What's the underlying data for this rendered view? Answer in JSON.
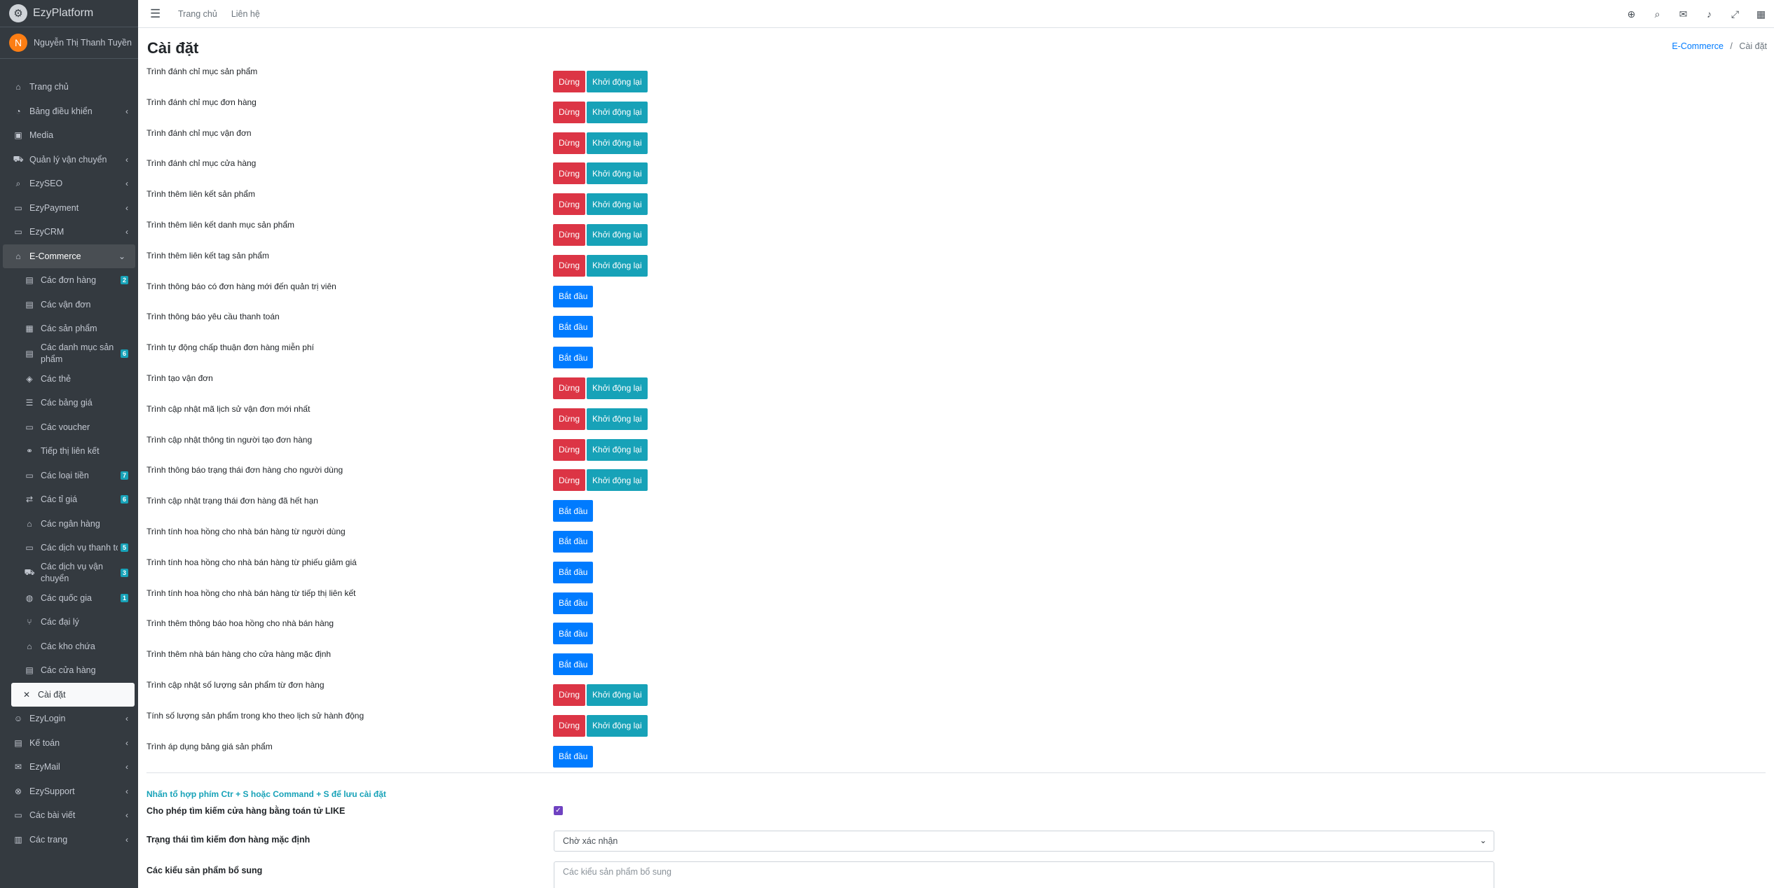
{
  "brand": {
    "name": "EzyPlatform",
    "logo_icon": "gear-icon"
  },
  "user": {
    "initial": "N",
    "name": "Nguyễn Thị Thanh Tuyền"
  },
  "sidebar": {
    "items": [
      {
        "label": "Trang chủ",
        "icon": "home-icon",
        "glyph": "⌂"
      },
      {
        "label": "Bảng điều khiển",
        "icon": "dashboard-icon",
        "glyph": "◔",
        "chevron": "‹"
      },
      {
        "label": "Media",
        "icon": "media-icon",
        "glyph": "▣"
      },
      {
        "label": "Quản lý vận chuyển",
        "icon": "truck-icon",
        "glyph": "⛟",
        "chevron": "‹"
      },
      {
        "label": "EzySEO",
        "icon": "search-icon",
        "glyph": "⌕",
        "chevron": "‹"
      },
      {
        "label": "EzyPayment",
        "icon": "card-icon",
        "glyph": "▭",
        "chevron": "‹"
      },
      {
        "label": "EzyCRM",
        "icon": "crm-icon",
        "glyph": "▭",
        "chevron": "‹"
      },
      {
        "label": "E-Commerce",
        "icon": "basket-icon",
        "glyph": "⌂",
        "chevron": "⌄"
      }
    ],
    "ecommerce_items": [
      {
        "label": "Các đơn hàng",
        "icon": "order-icon",
        "glyph": "▤",
        "badge": "2"
      },
      {
        "label": "Các vận đơn",
        "icon": "shipment-icon",
        "glyph": "▤"
      },
      {
        "label": "Các sản phẩm",
        "icon": "product-icon",
        "glyph": "▦"
      },
      {
        "label": "Các danh mục sản phẩm",
        "icon": "category-icon",
        "glyph": "▤",
        "badge": "6"
      },
      {
        "label": "Các thẻ",
        "icon": "tags-icon",
        "glyph": "◈"
      },
      {
        "label": "Các bảng giá",
        "icon": "list-icon",
        "glyph": "☰"
      },
      {
        "label": "Các voucher",
        "icon": "voucher-icon",
        "glyph": "▭"
      },
      {
        "label": "Tiếp thị liên kết",
        "icon": "link-icon",
        "glyph": "⚭"
      },
      {
        "label": "Các loại tiền",
        "icon": "money-icon",
        "glyph": "▭",
        "badge": "7"
      },
      {
        "label": "Các tỉ giá",
        "icon": "exchange-icon",
        "glyph": "⇄",
        "badge": "6"
      },
      {
        "label": "Các ngân hàng",
        "icon": "bank-icon",
        "glyph": "⌂"
      },
      {
        "label": "Các dịch vụ thanh toán",
        "icon": "payment-service-icon",
        "glyph": "▭",
        "badge": "5"
      },
      {
        "label": "Các dịch vụ vận chuyển",
        "icon": "shipping-service-icon",
        "glyph": "⛟",
        "badge": "3"
      },
      {
        "label": "Các quốc gia",
        "icon": "globe-icon",
        "glyph": "◍",
        "badge": "1"
      },
      {
        "label": "Các đại lý",
        "icon": "branch-icon",
        "glyph": "⑂"
      },
      {
        "label": "Các kho chứa",
        "icon": "warehouse-icon",
        "glyph": "⌂"
      },
      {
        "label": "Các cửa hàng",
        "icon": "store-icon",
        "glyph": "▤"
      },
      {
        "label": "Cài đặt",
        "icon": "tools-icon",
        "glyph": "✕"
      }
    ],
    "bottom_items": [
      {
        "label": "EzyLogin",
        "icon": "user-lock-icon",
        "glyph": "☺",
        "chevron": "‹"
      },
      {
        "label": "Kế toán",
        "icon": "accounting-icon",
        "glyph": "▤",
        "chevron": "‹"
      },
      {
        "label": "EzyMail",
        "icon": "mail-icon",
        "glyph": "✉",
        "chevron": "‹"
      },
      {
        "label": "EzySupport",
        "icon": "support-icon",
        "glyph": "⊗",
        "chevron": "‹"
      },
      {
        "label": "Các bài viết",
        "icon": "post-icon",
        "glyph": "▭",
        "chevron": "‹"
      },
      {
        "label": "Các trang",
        "icon": "page-icon",
        "glyph": "▥",
        "chevron": "‹"
      }
    ]
  },
  "header": {
    "menu_icon": "hamburger-icon",
    "links": [
      "Trang chủ",
      "Liên hệ"
    ],
    "icons": [
      {
        "name": "language-icon",
        "glyph": "⊕"
      },
      {
        "name": "search-icon",
        "glyph": "⌕"
      },
      {
        "name": "messages-icon",
        "glyph": "✉"
      },
      {
        "name": "bell-icon",
        "glyph": "♪"
      },
      {
        "name": "fullscreen-icon",
        "glyph": "⤢"
      },
      {
        "name": "apps-icon",
        "glyph": "▦"
      }
    ]
  },
  "page": {
    "title": "Cài đặt",
    "breadcrumb": {
      "parent": "E-Commerce",
      "separator": "/",
      "current": "Cài đặt"
    }
  },
  "buttons": {
    "stop": "Dừng",
    "restart": "Khởi động lại",
    "start": "Bắt đầu"
  },
  "colors": {
    "stop": "#dc3545",
    "restart": "#17a2b8",
    "start": "#007bff",
    "sidebar": "#343a40"
  },
  "processes": [
    {
      "label": "Trình đánh chỉ mục sản phẩm",
      "state": "running"
    },
    {
      "label": "Trình đánh chỉ mục đơn hàng",
      "state": "running"
    },
    {
      "label": "Trình đánh chỉ mục vận đơn",
      "state": "running"
    },
    {
      "label": "Trình đánh chỉ mục cửa hàng",
      "state": "running"
    },
    {
      "label": "Trình thêm liên kết sản phẩm",
      "state": "running"
    },
    {
      "label": "Trình thêm liên kết danh mục sản phẩm",
      "state": "running"
    },
    {
      "label": "Trình thêm liên kết tag sản phẩm",
      "state": "running"
    },
    {
      "label": "Trình thông báo có đơn hàng mới đến quản trị viên",
      "state": "stopped"
    },
    {
      "label": "Trình thông báo yêu cầu thanh toán",
      "state": "stopped"
    },
    {
      "label": "Trình tự động chấp thuận đơn hàng miễn phí",
      "state": "stopped"
    },
    {
      "label": "Trình tạo vận đơn",
      "state": "running"
    },
    {
      "label": "Trình cập nhật mã lịch sử vận đơn mới nhất",
      "state": "running"
    },
    {
      "label": "Trình cập nhật thông tin người tạo đơn hàng",
      "state": "running"
    },
    {
      "label": "Trình thông báo trạng thái đơn hàng cho người dùng",
      "state": "running"
    },
    {
      "label": "Trình cập nhật trạng thái đơn hàng đã hết hạn",
      "state": "stopped"
    },
    {
      "label": "Trình tính hoa hồng cho nhà bán hàng từ người dùng",
      "state": "stopped"
    },
    {
      "label": "Trình tính hoa hồng cho nhà bán hàng từ phiếu giảm giá",
      "state": "stopped"
    },
    {
      "label": "Trình tính hoa hồng cho nhà bán hàng từ tiếp thị liên kết",
      "state": "stopped"
    },
    {
      "label": "Trình thêm thông báo hoa hồng cho nhà bán hàng",
      "state": "stopped"
    },
    {
      "label": "Trình thêm nhà bán hàng cho cửa hàng mặc định",
      "state": "stopped"
    },
    {
      "label": "Trình cập nhật số lượng sản phẩm từ đơn hàng",
      "state": "running"
    },
    {
      "label": "Tính số lượng sản phẩm trong kho theo lịch sử hành động",
      "state": "running"
    },
    {
      "label": "Trình áp dụng bảng giá sản phẩm",
      "state": "stopped"
    }
  ],
  "settings": {
    "hint": "Nhấn tổ hợp phím Ctr + S hoặc Command + S để lưu cài đặt",
    "like_search": {
      "label": "Cho phép tìm kiếm cửa hàng bằng toán tử LIKE",
      "checked": true
    },
    "default_order_status": {
      "label": "Trạng thái tìm kiếm đơn hàng mặc định",
      "value": "Chờ xác nhận"
    },
    "extra_product_types": {
      "label": "Các kiểu sản phẩm bổ sung",
      "placeholder": "Các kiểu sản phẩm bổ sung"
    }
  }
}
